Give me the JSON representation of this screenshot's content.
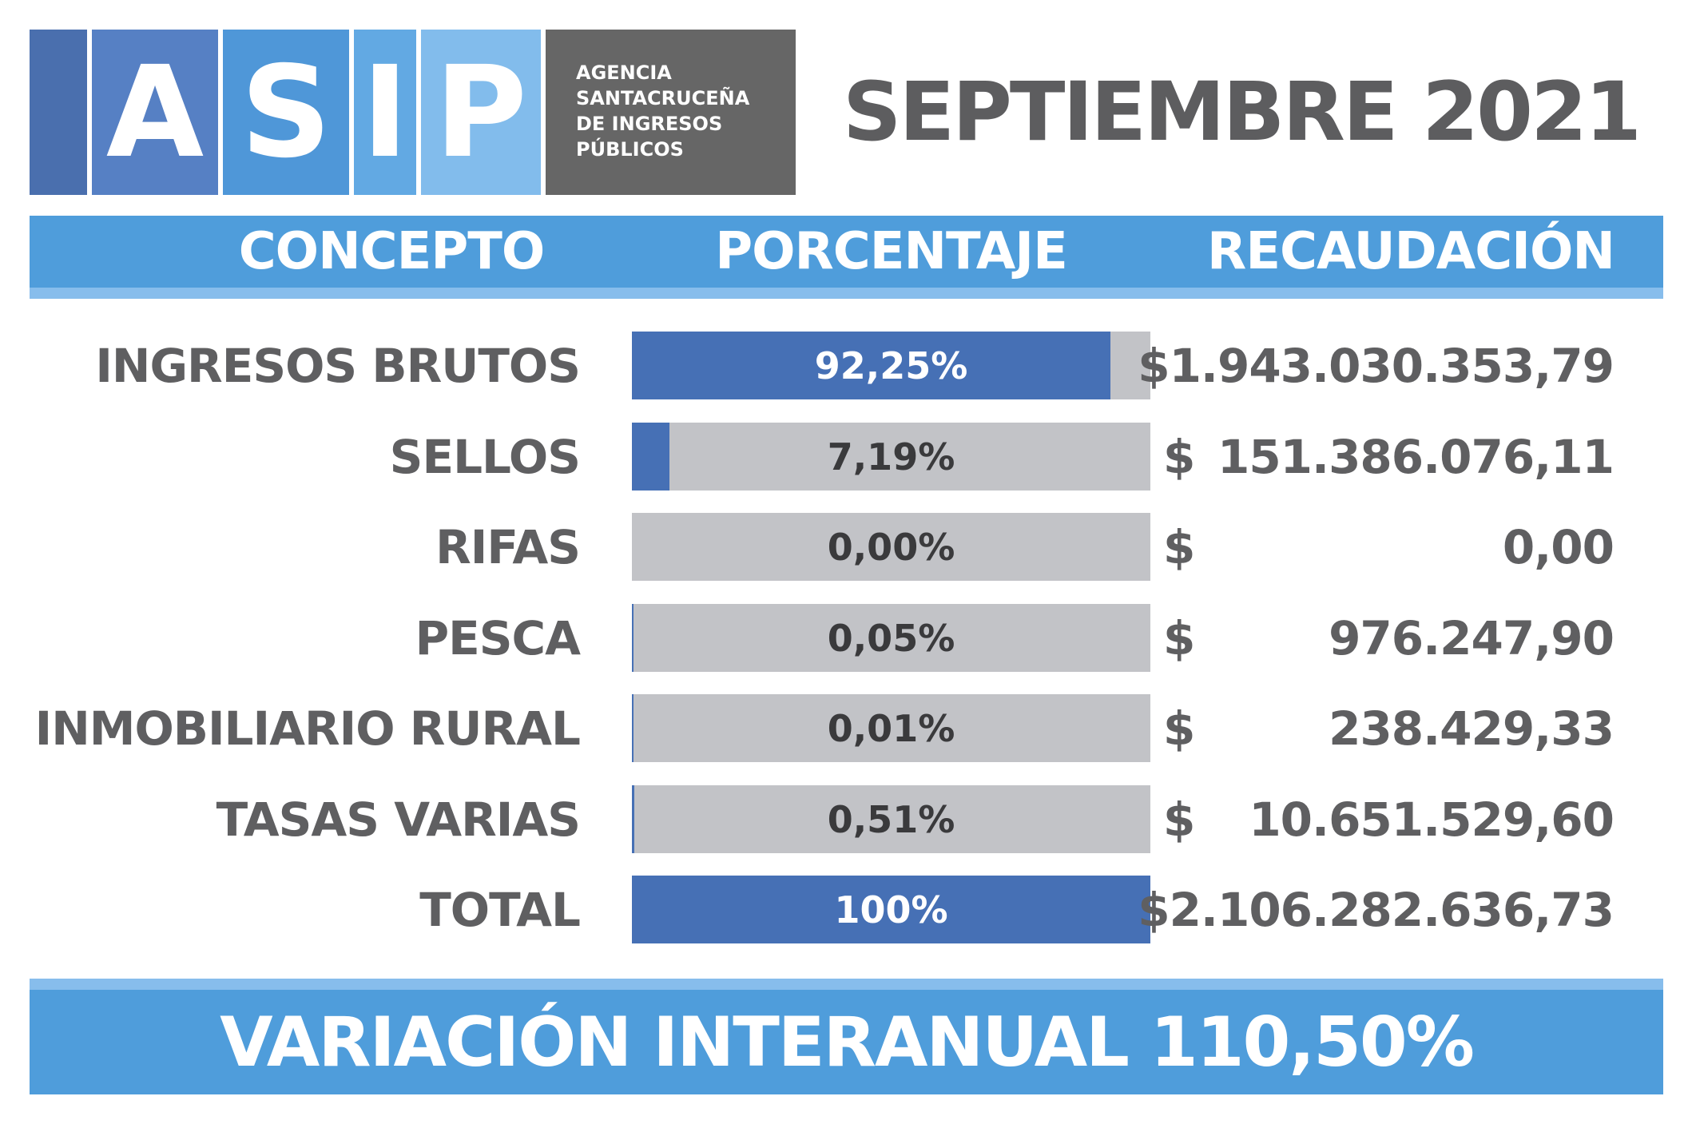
{
  "logo": {
    "letters": [
      "A",
      "S",
      "I",
      "P"
    ],
    "letter_colors": [
      "#5680c4",
      "#4f97d8",
      "#62a9e3",
      "#82bcec"
    ],
    "stripe_color": "#4a6fae",
    "text_lines": [
      "AGENCIA",
      "SANTACRUCEÑA",
      "DE INGRESOS",
      "PÚBLICOS"
    ]
  },
  "period": "SEPTIEMBRE 2021",
  "header": {
    "concepto": "CONCEPTO",
    "porcentaje": "PORCENTAJE",
    "recaudacion": "RECAUDACIÓN"
  },
  "chart_data": {
    "type": "bar",
    "categories": [
      "INGRESOS BRUTOS",
      "SELLOS",
      "RIFAS",
      "PESCA",
      "INMOBILIARIO RURAL",
      "TASAS VARIAS",
      "TOTAL"
    ],
    "values": [
      92.25,
      7.19,
      0.0,
      0.05,
      0.01,
      0.51,
      100
    ],
    "value_labels": [
      "92,25%",
      "7,19%",
      "0,00%",
      "0,05%",
      "0,01%",
      "0,51%",
      "100%"
    ],
    "ylim": [
      0,
      100
    ],
    "currency_symbol": "$",
    "amounts": [
      "$1.943.030.353,79",
      "151.386.076,11",
      "0,00",
      "976.247,90",
      "238.429,33",
      "10.651.529,60",
      "$2.106.282.636,73"
    ],
    "bar_color": "#4670b5",
    "track_color": "#c2c3c7"
  },
  "footer": "VARIACIÓN INTERANUAL 110,50%",
  "colors": {
    "header_blue": "#4f9ddb",
    "light_blue": "#87bdec",
    "dark_gray": "#666666",
    "text_gray": "#5f5f61"
  }
}
